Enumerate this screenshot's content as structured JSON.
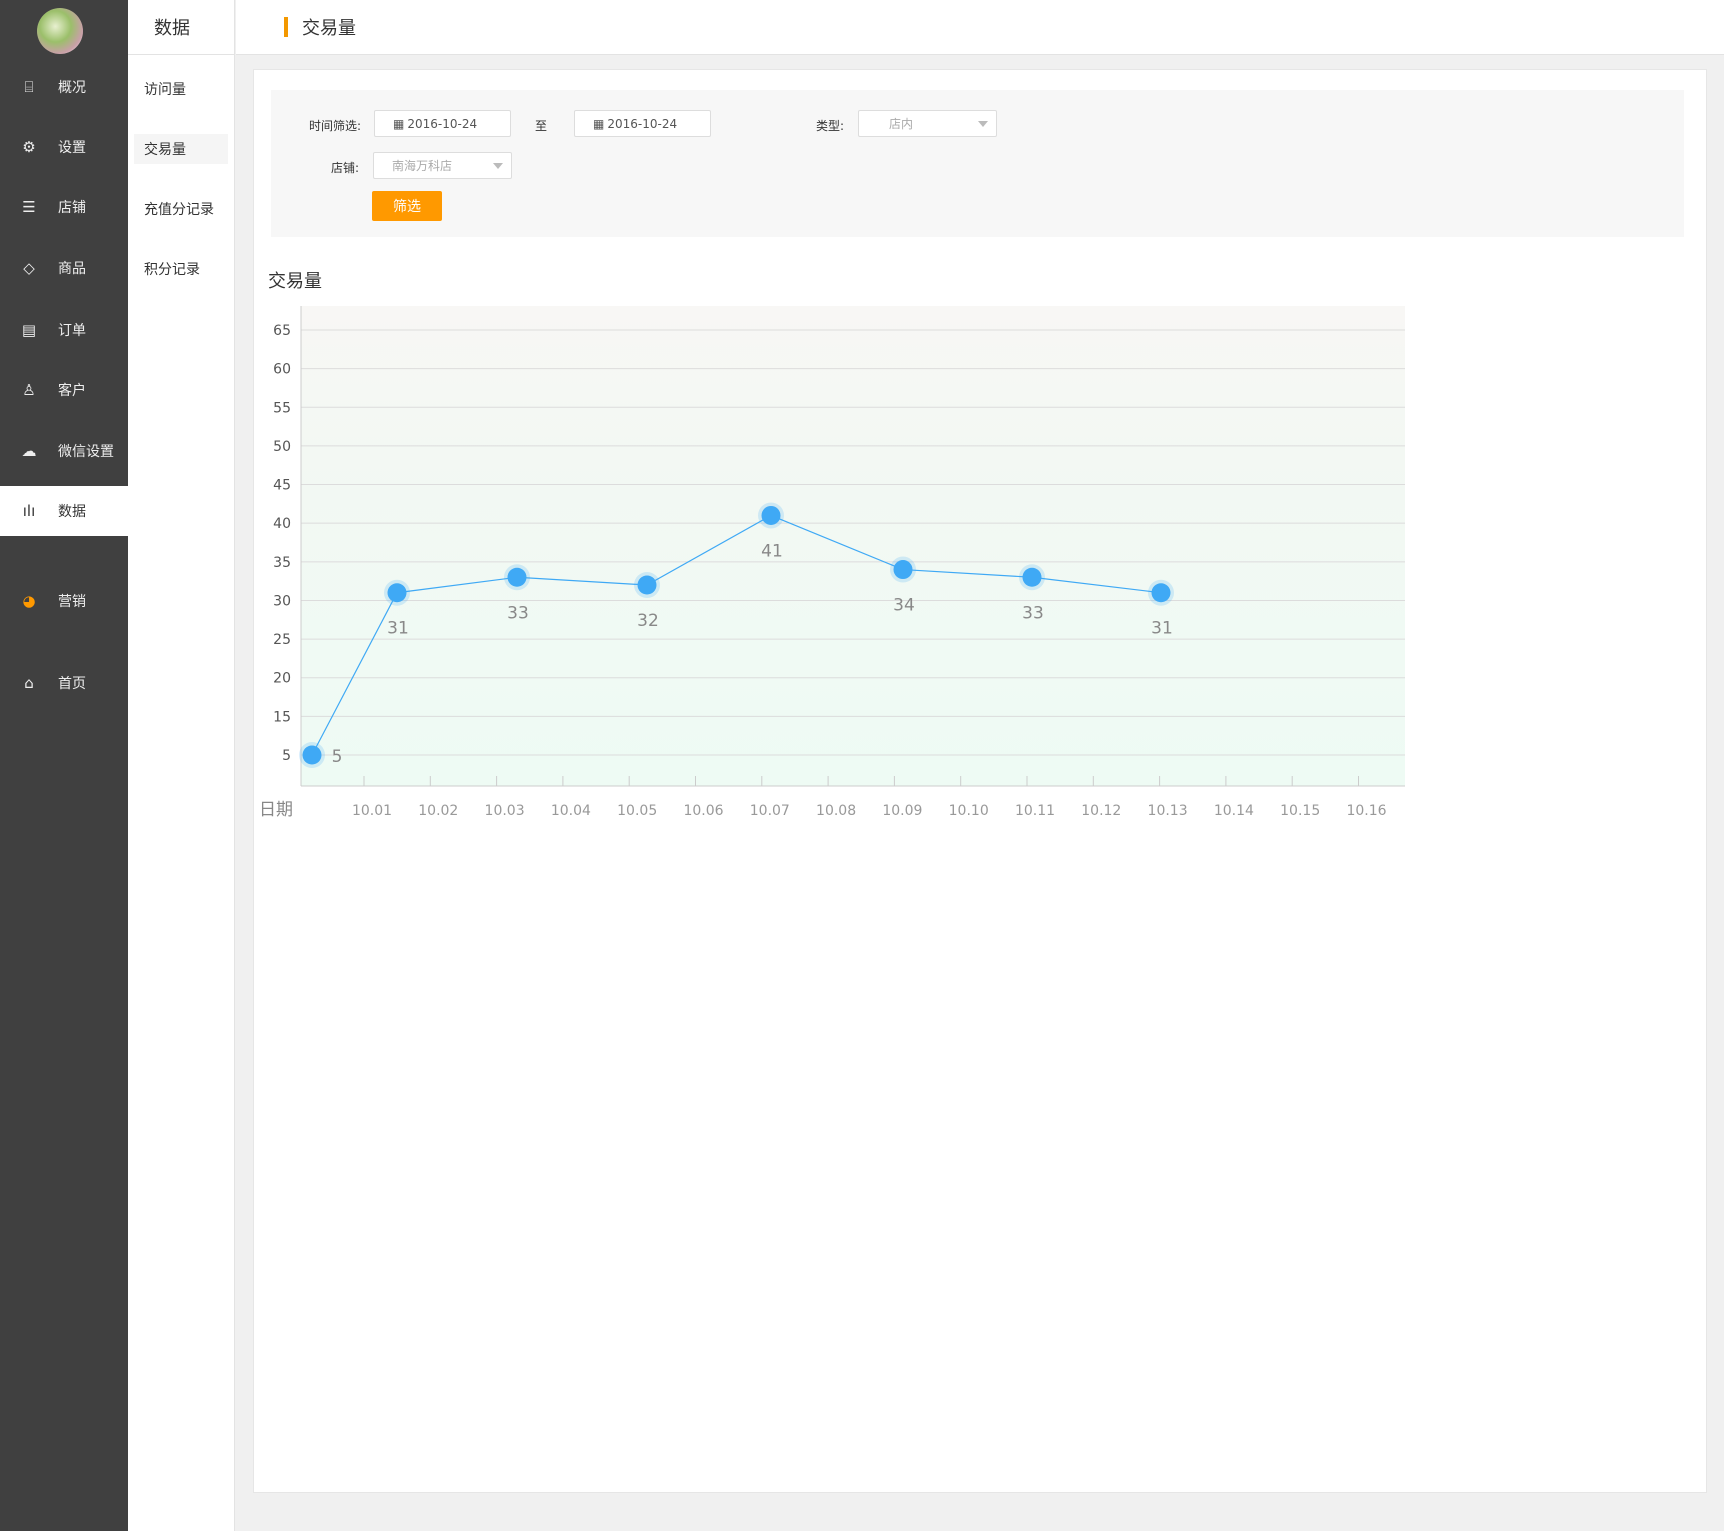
{
  "sidebar": {
    "items": [
      {
        "label": "概况",
        "icon": "presentation-chart-icon"
      },
      {
        "label": "设置",
        "icon": "gear-icon"
      },
      {
        "label": "店铺",
        "icon": "store-icon"
      },
      {
        "label": "商品",
        "icon": "tag-icon"
      },
      {
        "label": "订单",
        "icon": "list-icon"
      },
      {
        "label": "客户",
        "icon": "user-icon"
      },
      {
        "label": "微信设置",
        "icon": "wechat-icon"
      },
      {
        "label": "数据",
        "icon": "bar-chart-icon",
        "active": true
      },
      {
        "label": "营销",
        "icon": "pie-icon"
      },
      {
        "label": "首页",
        "icon": "home-icon"
      }
    ]
  },
  "subnav": {
    "title": "数据",
    "items": [
      {
        "label": "访问量"
      },
      {
        "label": "交易量",
        "active": true
      },
      {
        "label": "充值分记录"
      },
      {
        "label": "积分记录"
      }
    ]
  },
  "header": {
    "title": "交易量"
  },
  "filter": {
    "time_label": "时间筛选:",
    "start_date": "2016-10-24",
    "to_label": "至",
    "end_date": "2016-10-24",
    "type_label": "类型:",
    "type_value": "店内",
    "store_label": "店铺:",
    "store_value": "南海万科店",
    "submit_label": "筛选"
  },
  "colors": {
    "accent": "#f39800",
    "button": "#ff9900",
    "series": "#3fa9f5",
    "sidebar": "#404040"
  },
  "chart_data": {
    "type": "line",
    "title": "交易量",
    "xlabel": "日期",
    "ylabel": "",
    "x_ticks": [
      "10.01",
      "10.02",
      "10.03",
      "10.04",
      "10.05",
      "10.06",
      "10.07",
      "10.08",
      "10.09",
      "10.10",
      "10.11",
      "10.12",
      "10.13",
      "10.14",
      "10.15",
      "10.16"
    ],
    "y_ticks": [
      "5",
      "15",
      "20",
      "25",
      "30",
      "35",
      "40",
      "45",
      "50",
      "55",
      "60",
      "65"
    ],
    "grid": true,
    "series": [
      {
        "values": [
          5,
          31,
          33,
          32,
          41,
          34,
          33,
          31
        ]
      }
    ]
  }
}
